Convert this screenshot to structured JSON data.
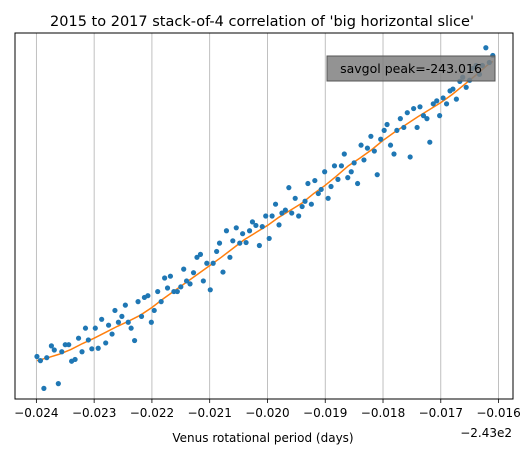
{
  "chart_data": {
    "type": "scatter",
    "title": "2015 to 2017 stack-of-4 correlation of 'big horizontal slice'",
    "xlabel": "Venus rotational period (days)",
    "ylabel": "",
    "x_offset_label": "−2.43e2",
    "xlim": [
      -0.02437,
      -0.01575
    ],
    "ylim": [
      -0.1,
      6.1
    ],
    "x_grid": true,
    "y_ticks_visible": false,
    "x_ticks": [
      {
        "value": -0.024,
        "label": "−0.024"
      },
      {
        "value": -0.023,
        "label": "−0.023"
      },
      {
        "value": -0.022,
        "label": "−0.022"
      },
      {
        "value": -0.021,
        "label": "−0.021"
      },
      {
        "value": -0.02,
        "label": "−0.020"
      },
      {
        "value": -0.019,
        "label": "−0.019"
      },
      {
        "value": -0.018,
        "label": "−0.018"
      },
      {
        "value": -0.017,
        "label": "−0.017"
      },
      {
        "value": -0.016,
        "label": "−0.016"
      }
    ],
    "annotation": {
      "text": "savgol peak=-243.016",
      "placement": "top-right",
      "background": "#808080"
    },
    "series": [
      {
        "kind": "scatter",
        "color": "#1f77b4",
        "points": [
          [
            -0.02399,
            0.62
          ],
          [
            -0.02393,
            0.55
          ],
          [
            -0.02387,
            0.08
          ],
          [
            -0.02382,
            0.6
          ],
          [
            -0.02374,
            0.8
          ],
          [
            -0.02369,
            0.73
          ],
          [
            -0.02362,
            0.16
          ],
          [
            -0.02356,
            0.7
          ],
          [
            -0.0235,
            0.82
          ],
          [
            -0.02344,
            0.82
          ],
          [
            -0.02339,
            0.54
          ],
          [
            -0.02333,
            0.57
          ],
          [
            -0.02327,
            0.93
          ],
          [
            -0.02321,
            0.7
          ],
          [
            -0.02315,
            1.1
          ],
          [
            -0.0231,
            0.9
          ],
          [
            -0.02304,
            0.75
          ],
          [
            -0.02298,
            1.1
          ],
          [
            -0.02293,
            0.76
          ],
          [
            -0.02287,
            1.25
          ],
          [
            -0.0228,
            0.85
          ],
          [
            -0.02275,
            1.15
          ],
          [
            -0.02269,
            1.0
          ],
          [
            -0.02264,
            1.4
          ],
          [
            -0.02258,
            1.2
          ],
          [
            -0.02252,
            1.3
          ],
          [
            -0.02246,
            1.49
          ],
          [
            -0.02241,
            1.2
          ],
          [
            -0.02236,
            1.1
          ],
          [
            -0.0223,
            0.89
          ],
          [
            -0.02224,
            1.55
          ],
          [
            -0.02218,
            1.3
          ],
          [
            -0.02213,
            1.62
          ],
          [
            -0.02207,
            1.65
          ],
          [
            -0.02201,
            1.2
          ],
          [
            -0.02196,
            1.4
          ],
          [
            -0.0219,
            1.72
          ],
          [
            -0.02184,
            1.55
          ],
          [
            -0.02178,
            1.95
          ],
          [
            -0.02173,
            1.78
          ],
          [
            -0.02168,
            1.98
          ],
          [
            -0.02162,
            1.72
          ],
          [
            -0.02156,
            1.72
          ],
          [
            -0.0215,
            1.8
          ],
          [
            -0.02145,
            2.1
          ],
          [
            -0.0214,
            1.9
          ],
          [
            -0.02134,
            1.85
          ],
          [
            -0.02128,
            2.04
          ],
          [
            -0.02122,
            2.3
          ],
          [
            -0.02116,
            2.35
          ],
          [
            -0.02111,
            1.9
          ],
          [
            -0.02105,
            2.2
          ],
          [
            -0.02099,
            1.75
          ],
          [
            -0.02094,
            2.2
          ],
          [
            -0.02088,
            2.4
          ],
          [
            -0.02083,
            2.54
          ],
          [
            -0.02077,
            2.05
          ],
          [
            -0.02071,
            2.75
          ],
          [
            -0.02065,
            2.3
          ],
          [
            -0.0206,
            2.58
          ],
          [
            -0.02054,
            2.8
          ],
          [
            -0.02048,
            2.54
          ],
          [
            -0.02043,
            2.7
          ],
          [
            -0.02037,
            2.55
          ],
          [
            -0.02031,
            2.75
          ],
          [
            -0.02026,
            2.9
          ],
          [
            -0.0202,
            2.84
          ],
          [
            -0.02014,
            2.5
          ],
          [
            -0.02009,
            2.82
          ],
          [
            -0.02003,
            3.0
          ],
          [
            -0.01997,
            2.62
          ],
          [
            -0.01992,
            3.0
          ],
          [
            -0.01986,
            3.2
          ],
          [
            -0.0198,
            2.85
          ],
          [
            -0.01975,
            3.05
          ],
          [
            -0.01969,
            3.1
          ],
          [
            -0.01963,
            3.48
          ],
          [
            -0.01958,
            3.05
          ],
          [
            -0.01952,
            3.3
          ],
          [
            -0.01946,
            3.0
          ],
          [
            -0.0194,
            3.16
          ],
          [
            -0.01935,
            3.25
          ],
          [
            -0.0193,
            3.55
          ],
          [
            -0.01924,
            3.2
          ],
          [
            -0.01918,
            3.6
          ],
          [
            -0.01912,
            3.38
          ],
          [
            -0.01907,
            3.45
          ],
          [
            -0.01901,
            3.75
          ],
          [
            -0.01895,
            3.3
          ],
          [
            -0.0189,
            3.5
          ],
          [
            -0.01884,
            3.85
          ],
          [
            -0.01878,
            3.62
          ],
          [
            -0.01872,
            3.85
          ],
          [
            -0.01867,
            4.05
          ],
          [
            -0.01861,
            3.65
          ],
          [
            -0.01855,
            3.75
          ],
          [
            -0.0185,
            3.9
          ],
          [
            -0.01844,
            3.55
          ],
          [
            -0.01838,
            4.2
          ],
          [
            -0.01833,
            3.95
          ],
          [
            -0.01827,
            4.15
          ],
          [
            -0.01821,
            4.35
          ],
          [
            -0.01815,
            4.1
          ],
          [
            -0.0181,
            3.7
          ],
          [
            -0.01804,
            4.3
          ],
          [
            -0.01798,
            4.45
          ],
          [
            -0.01793,
            4.55
          ],
          [
            -0.01787,
            4.2
          ],
          [
            -0.01781,
            4.05
          ],
          [
            -0.01776,
            4.45
          ],
          [
            -0.0177,
            4.65
          ],
          [
            -0.01764,
            4.5
          ],
          [
            -0.01758,
            4.75
          ],
          [
            -0.01753,
            4.0
          ],
          [
            -0.01747,
            4.82
          ],
          [
            -0.01741,
            4.5
          ],
          [
            -0.01736,
            4.85
          ],
          [
            -0.0173,
            4.7
          ],
          [
            -0.01724,
            4.65
          ],
          [
            -0.01719,
            4.25
          ],
          [
            -0.01713,
            4.9
          ],
          [
            -0.01707,
            4.95
          ],
          [
            -0.01702,
            4.7
          ],
          [
            -0.01696,
            5.0
          ],
          [
            -0.0169,
            4.9
          ],
          [
            -0.01684,
            5.12
          ],
          [
            -0.01679,
            5.15
          ],
          [
            -0.01673,
            4.98
          ],
          [
            -0.01667,
            5.28
          ],
          [
            -0.01662,
            5.35
          ],
          [
            -0.01656,
            5.18
          ],
          [
            -0.0165,
            5.3
          ],
          [
            -0.01645,
            5.5
          ],
          [
            -0.01639,
            5.55
          ],
          [
            -0.01633,
            5.4
          ],
          [
            -0.01628,
            5.55
          ],
          [
            -0.01622,
            5.85
          ],
          [
            -0.01616,
            5.6
          ],
          [
            -0.0161,
            5.72
          ]
        ]
      },
      {
        "kind": "line",
        "color": "#ff7f0e",
        "points": [
          [
            -0.02399,
            0.55
          ],
          [
            -0.0238,
            0.6
          ],
          [
            -0.0236,
            0.66
          ],
          [
            -0.0234,
            0.74
          ],
          [
            -0.0232,
            0.84
          ],
          [
            -0.023,
            0.93
          ],
          [
            -0.0228,
            1.03
          ],
          [
            -0.0226,
            1.13
          ],
          [
            -0.0224,
            1.22
          ],
          [
            -0.0222,
            1.32
          ],
          [
            -0.022,
            1.45
          ],
          [
            -0.0218,
            1.6
          ],
          [
            -0.0216,
            1.74
          ],
          [
            -0.0214,
            1.88
          ],
          [
            -0.0212,
            2.02
          ],
          [
            -0.021,
            2.16
          ],
          [
            -0.0208,
            2.3
          ],
          [
            -0.0206,
            2.45
          ],
          [
            -0.0204,
            2.6
          ],
          [
            -0.0202,
            2.72
          ],
          [
            -0.02,
            2.84
          ],
          [
            -0.0198,
            2.98
          ],
          [
            -0.0196,
            3.1
          ],
          [
            -0.0194,
            3.22
          ],
          [
            -0.0192,
            3.38
          ],
          [
            -0.019,
            3.52
          ],
          [
            -0.0188,
            3.68
          ],
          [
            -0.0186,
            3.85
          ],
          [
            -0.0184,
            3.98
          ],
          [
            -0.0182,
            4.12
          ],
          [
            -0.018,
            4.28
          ],
          [
            -0.0178,
            4.42
          ],
          [
            -0.0176,
            4.55
          ],
          [
            -0.0174,
            4.68
          ],
          [
            -0.0172,
            4.8
          ],
          [
            -0.017,
            4.92
          ],
          [
            -0.0168,
            5.06
          ],
          [
            -0.0166,
            5.22
          ],
          [
            -0.0164,
            5.38
          ],
          [
            -0.0162,
            5.55
          ],
          [
            -0.0161,
            5.62
          ]
        ]
      }
    ]
  }
}
